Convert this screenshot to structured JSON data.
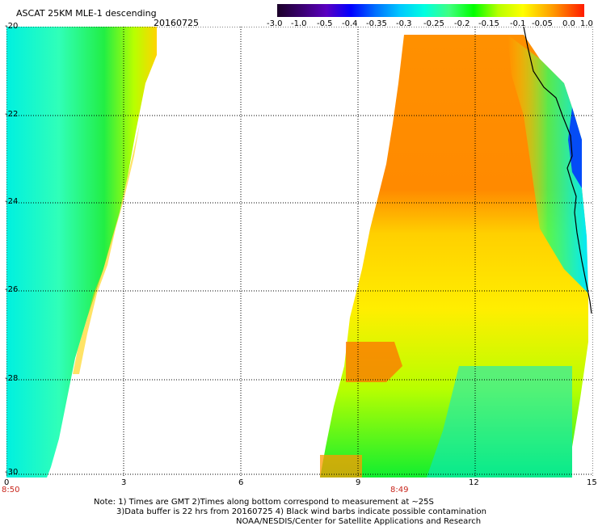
{
  "header": {
    "title": "ASCAT 25KM MLE-1 descending",
    "date": "20160725"
  },
  "colorbar": {
    "ticks": [
      "-3.0",
      "-1.0",
      "-0.5",
      "-0.4",
      "-0.35",
      "-0.3",
      "-0.25",
      "-0.2",
      "-0.15",
      "-0.1",
      "-0.05",
      "0.0",
      "1.0"
    ],
    "colors": [
      "#1a0028",
      "#4a00b0",
      "#0000ff",
      "#0060ff",
      "#00a0ff",
      "#00e8ff",
      "#40ffb0",
      "#00ff00",
      "#b0ff00",
      "#ffff00",
      "#ffb000",
      "#ff7000",
      "#ff1000"
    ]
  },
  "axes": {
    "y_ticks": [
      "-20",
      "-22",
      "-24",
      "-26",
      "-28",
      "-30"
    ],
    "x_ticks": [
      "0",
      "3",
      "6",
      "9",
      "12",
      "15"
    ],
    "times": {
      "left": "8:50",
      "right": "8:49"
    }
  },
  "notes": {
    "line1": "Note: 1) Times are GMT 2)Times along bottom correspond to measurement at ~25S",
    "line2": "3)Data buffer is 22 hrs from 20160725 4) Black wind barbs indicate possible contamination",
    "line3": "NOAA/NESDIS/Center for Satellite Applications and Research"
  }
}
